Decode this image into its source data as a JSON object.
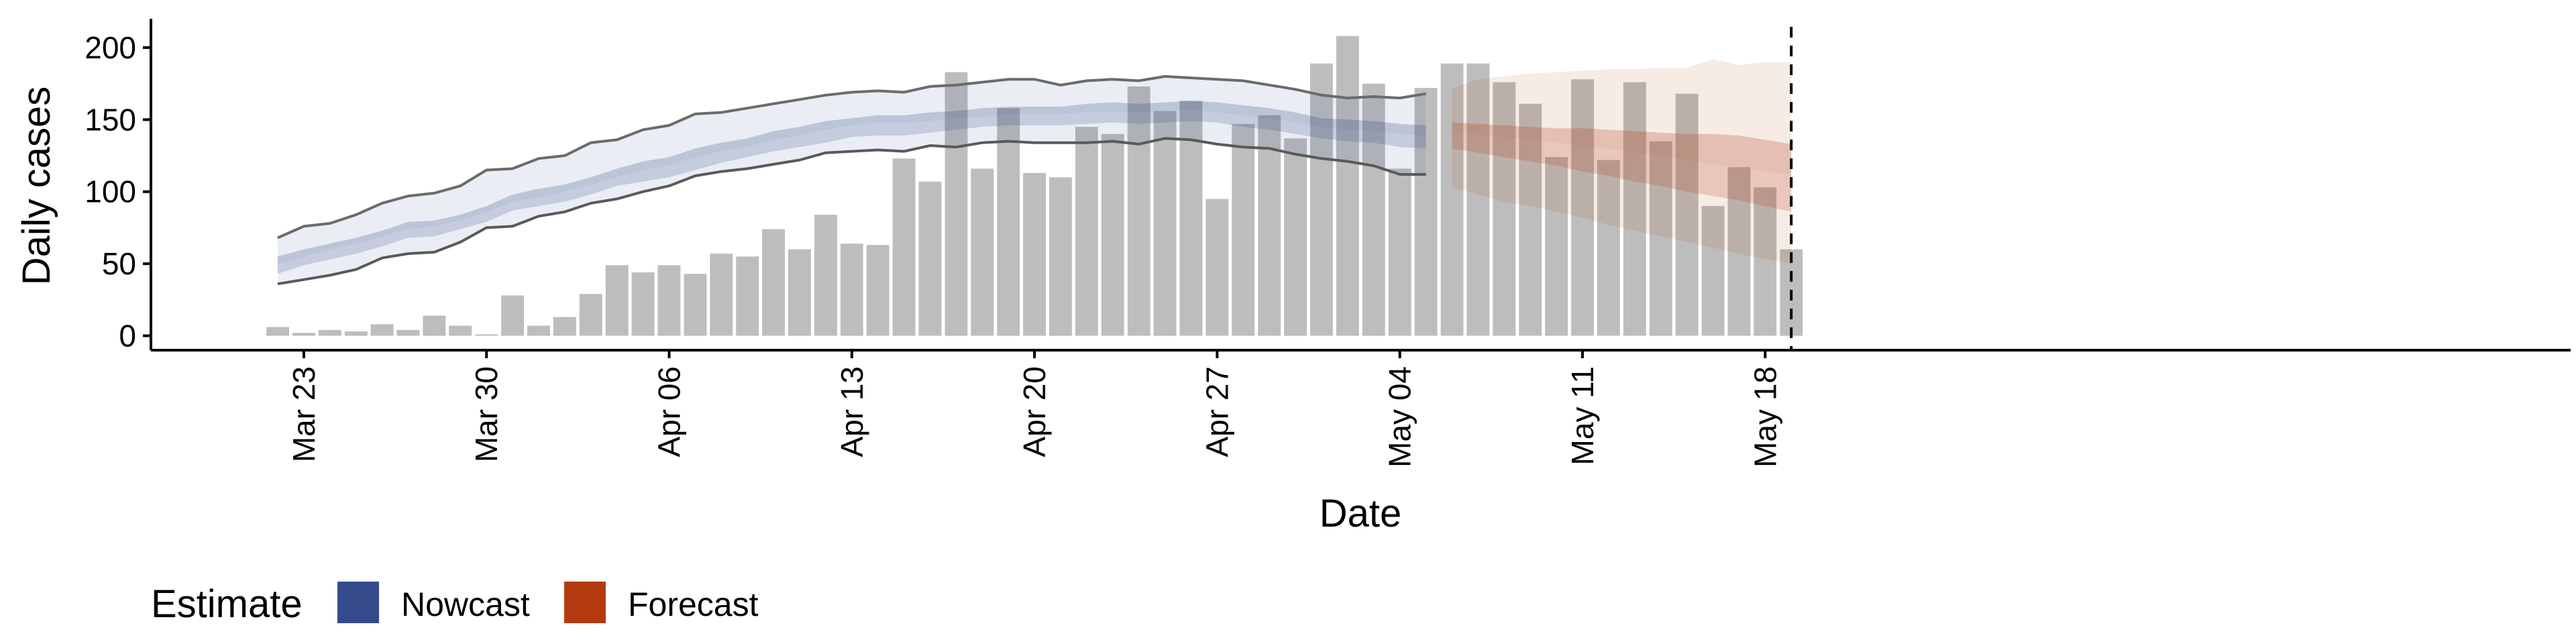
{
  "chart_data": {
    "type": "bar",
    "xlabel": "Date",
    "ylabel": "Daily cases",
    "ylim": [
      -10,
      220
    ],
    "yticks": [
      0,
      50,
      100,
      150,
      200
    ],
    "xticks": [
      {
        "date": "2020-03-23",
        "label": "Mar 23"
      },
      {
        "date": "2020-03-30",
        "label": "Mar 30"
      },
      {
        "date": "2020-04-06",
        "label": "Apr 06"
      },
      {
        "date": "2020-04-13",
        "label": "Apr 13"
      },
      {
        "date": "2020-04-20",
        "label": "Apr 20"
      },
      {
        "date": "2020-04-27",
        "label": "Apr 27"
      },
      {
        "date": "2020-05-04",
        "label": "May 04"
      },
      {
        "date": "2020-05-11",
        "label": "May 11"
      },
      {
        "date": "2020-05-18",
        "label": "May 18"
      }
    ],
    "reference_line_date": "2020-05-19",
    "bars": {
      "dates": [
        "2020-03-22",
        "2020-03-23",
        "2020-03-24",
        "2020-03-25",
        "2020-03-26",
        "2020-03-27",
        "2020-03-28",
        "2020-03-29",
        "2020-03-30",
        "2020-03-31",
        "2020-04-01",
        "2020-04-02",
        "2020-04-03",
        "2020-04-04",
        "2020-04-05",
        "2020-04-06",
        "2020-04-07",
        "2020-04-08",
        "2020-04-09",
        "2020-04-10",
        "2020-04-11",
        "2020-04-12",
        "2020-04-13",
        "2020-04-14",
        "2020-04-15",
        "2020-04-16",
        "2020-04-17",
        "2020-04-18",
        "2020-04-19",
        "2020-04-20",
        "2020-04-21",
        "2020-04-22",
        "2020-04-23",
        "2020-04-24",
        "2020-04-25",
        "2020-04-26",
        "2020-04-27",
        "2020-04-28",
        "2020-04-29",
        "2020-04-30",
        "2020-05-01",
        "2020-05-02",
        "2020-05-03",
        "2020-05-04",
        "2020-05-05",
        "2020-05-06",
        "2020-05-07",
        "2020-05-08",
        "2020-05-09",
        "2020-05-10",
        "2020-05-11",
        "2020-05-12",
        "2020-05-13",
        "2020-05-14",
        "2020-05-15",
        "2020-05-16",
        "2020-05-17",
        "2020-05-18",
        "2020-05-19"
      ],
      "values": [
        6,
        2,
        4,
        3,
        8,
        4,
        14,
        7,
        1,
        28,
        7,
        13,
        29,
        49,
        44,
        49,
        43,
        57,
        55,
        74,
        60,
        84,
        64,
        63,
        123,
        107,
        183,
        116,
        158,
        113,
        110,
        145,
        140,
        173,
        156,
        163,
        95,
        147,
        153,
        137,
        189,
        208,
        175,
        116,
        172,
        189,
        189,
        176,
        161,
        124,
        178,
        122,
        176,
        135,
        168,
        90,
        117,
        103,
        60
      ]
    },
    "series": [
      {
        "name": "Nowcast",
        "color": "#344A8A",
        "dates": [
          "2020-03-22",
          "2020-03-23",
          "2020-03-24",
          "2020-03-25",
          "2020-03-26",
          "2020-03-27",
          "2020-03-28",
          "2020-03-29",
          "2020-03-30",
          "2020-03-31",
          "2020-04-01",
          "2020-04-02",
          "2020-04-03",
          "2020-04-04",
          "2020-04-05",
          "2020-04-06",
          "2020-04-07",
          "2020-04-08",
          "2020-04-09",
          "2020-04-10",
          "2020-04-11",
          "2020-04-12",
          "2020-04-13",
          "2020-04-14",
          "2020-04-15",
          "2020-04-16",
          "2020-04-17",
          "2020-04-18",
          "2020-04-19",
          "2020-04-20",
          "2020-04-21",
          "2020-04-22",
          "2020-04-23",
          "2020-04-24",
          "2020-04-25",
          "2020-04-26",
          "2020-04-27",
          "2020-04-28",
          "2020-04-29",
          "2020-04-30",
          "2020-05-01",
          "2020-05-02",
          "2020-05-03",
          "2020-05-04",
          "2020-05-05"
        ],
        "upper90": [
          68,
          76,
          78,
          84,
          92,
          97,
          99,
          104,
          115,
          116,
          123,
          125,
          134,
          136,
          143,
          146,
          154,
          155,
          158,
          161,
          164,
          167,
          169,
          170,
          169,
          173,
          174,
          176,
          178,
          178,
          174,
          177,
          178,
          177,
          180,
          179,
          178,
          177,
          174,
          171,
          167,
          165,
          166,
          165,
          168
        ],
        "upper50": [
          55,
          60,
          64,
          68,
          73,
          79,
          80,
          84,
          90,
          98,
          102,
          105,
          110,
          116,
          121,
          124,
          130,
          134,
          137,
          142,
          145,
          149,
          151,
          153,
          153,
          155,
          156,
          158,
          159,
          159,
          159,
          161,
          162,
          161,
          162,
          163,
          162,
          160,
          158,
          155,
          151,
          150,
          149,
          147,
          146
        ],
        "median": [
          50,
          55,
          60,
          64,
          69,
          74,
          76,
          80,
          86,
          93,
          96,
          100,
          105,
          110,
          115,
          118,
          124,
          128,
          131,
          136,
          139,
          143,
          146,
          148,
          148,
          149,
          151,
          152,
          154,
          154,
          154,
          155,
          155,
          155,
          156,
          157,
          155,
          153,
          151,
          148,
          145,
          143,
          142,
          140,
          139
        ],
        "lower50": [
          43,
          49,
          53,
          57,
          62,
          68,
          69,
          74,
          79,
          87,
          90,
          93,
          98,
          104,
          107,
          110,
          115,
          120,
          124,
          128,
          131,
          134,
          138,
          139,
          139,
          141,
          143,
          145,
          146,
          146,
          146,
          147,
          148,
          147,
          148,
          149,
          148,
          145,
          143,
          140,
          137,
          135,
          134,
          131,
          130
        ],
        "lower90": [
          36,
          39,
          42,
          46,
          54,
          57,
          58,
          65,
          75,
          76,
          83,
          86,
          92,
          95,
          100,
          104,
          111,
          114,
          116,
          119,
          122,
          127,
          128,
          129,
          128,
          132,
          131,
          134,
          135,
          134,
          134,
          134,
          135,
          133,
          137,
          136,
          133,
          131,
          130,
          126,
          123,
          121,
          118,
          112,
          112
        ]
      },
      {
        "name": "Forecast",
        "color": "#B23A0E",
        "dates": [
          "2020-05-06",
          "2020-05-07",
          "2020-05-08",
          "2020-05-09",
          "2020-05-10",
          "2020-05-11",
          "2020-05-12",
          "2020-05-13",
          "2020-05-14",
          "2020-05-15",
          "2020-05-16",
          "2020-05-17",
          "2020-05-18",
          "2020-05-19"
        ],
        "upper90": [
          172,
          178,
          180,
          182,
          183,
          184,
          185,
          185,
          186,
          186,
          192,
          188,
          190,
          190
        ],
        "upper50": [
          148,
          147,
          146,
          145,
          144,
          144,
          143,
          142,
          141,
          140,
          140,
          139,
          136,
          133
        ],
        "median": [
          143,
          140,
          138,
          136,
          134,
          132,
          130,
          127,
          125,
          122,
          119,
          117,
          114,
          112
        ],
        "lower50": [
          130,
          127,
          124,
          121,
          118,
          114,
          111,
          107,
          104,
          100,
          97,
          94,
          90,
          86
        ],
        "lower90": [
          103,
          98,
          93,
          90,
          86,
          82,
          77,
          73,
          69,
          65,
          61,
          57,
          53,
          50
        ]
      }
    ],
    "legend": {
      "title": "Estimate",
      "position": "bottom-left",
      "entries": [
        {
          "label": "Nowcast",
          "color": "#344A8A"
        },
        {
          "label": "Forecast",
          "color": "#B23A0E"
        }
      ]
    }
  }
}
